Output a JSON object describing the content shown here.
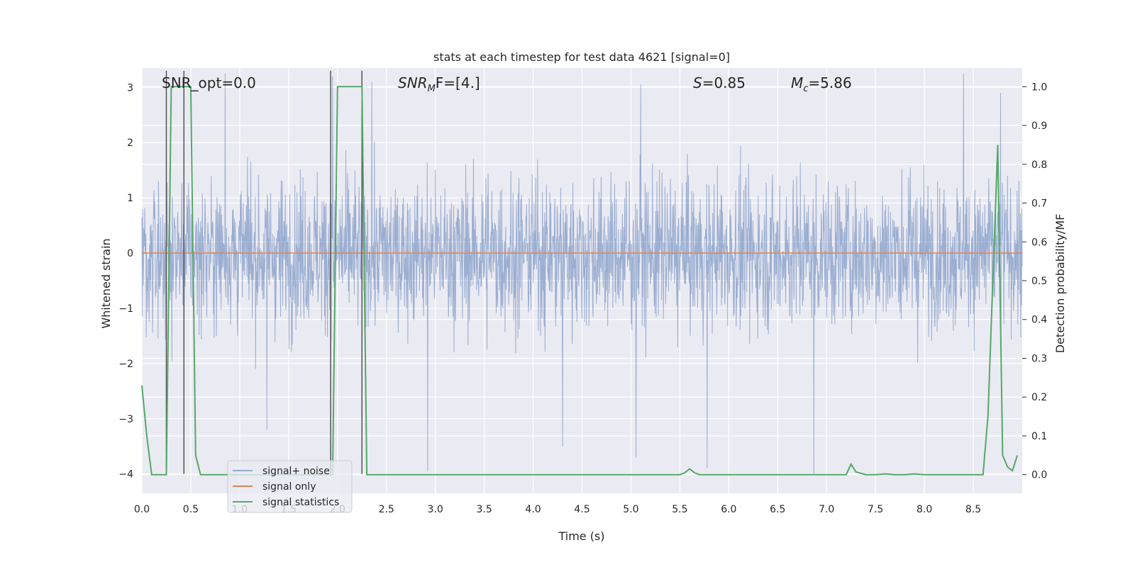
{
  "chart_data": {
    "type": "line",
    "title": "stats at each timestep for test data 4621 [signal=0]",
    "xlabel": "Time (s)",
    "ylabel": "Whitened strain",
    "y2label": "Detection probability/MF",
    "xlim": [
      0.0,
      9.0
    ],
    "ylim": [
      -4.35,
      3.35
    ],
    "y2lim": [
      -0.048,
      1.048
    ],
    "x_ticks": [
      "0.0",
      "0.5",
      "1.0",
      "1.5",
      "2.0",
      "2.5",
      "3.0",
      "3.5",
      "4.0",
      "4.5",
      "5.0",
      "5.5",
      "6.0",
      "6.5",
      "7.0",
      "7.5",
      "8.0",
      "8.5"
    ],
    "y_ticks": [
      "3",
      "2",
      "1",
      "0",
      "−1",
      "−2",
      "−3",
      "−4"
    ],
    "y2_ticks": [
      "1.0",
      "0.9",
      "0.8",
      "0.7",
      "0.6",
      "0.5",
      "0.4",
      "0.3",
      "0.2",
      "0.1",
      "0.0"
    ],
    "grid": true,
    "legend_position": "lower-left",
    "annotations": {
      "snr_opt": "SNR_opt=0.0",
      "snr_mf_main": "SNR",
      "snr_mf_sub": "M",
      "snr_mf_tail": "F=[4.]",
      "s_main": "S",
      "s_tail": "=0.85",
      "mc_main": "M",
      "mc_sub": "c",
      "mc_tail": "=5.86"
    },
    "series": [
      {
        "name": "signal+ noise",
        "color": "#4c72b0",
        "noise_envelope": {
          "typical_range": [
            -1.8,
            1.8
          ],
          "extremes": [
            -4.0,
            3.3
          ]
        },
        "spikes": [
          {
            "x": 0.85,
            "y": 3.25
          },
          {
            "x": 1.28,
            "y": -3.2
          },
          {
            "x": 1.95,
            "y": 3.2
          },
          {
            "x": 2.35,
            "y": 3.1
          },
          {
            "x": 2.92,
            "y": -3.95
          },
          {
            "x": 4.3,
            "y": -3.5
          },
          {
            "x": 5.05,
            "y": -3.7
          },
          {
            "x": 5.1,
            "y": 3.05
          },
          {
            "x": 5.78,
            "y": -3.9
          },
          {
            "x": 6.87,
            "y": -4.0
          },
          {
            "x": 8.4,
            "y": 3.25
          },
          {
            "x": 8.78,
            "y": 2.9
          }
        ]
      },
      {
        "name": "signal only",
        "color": "#dd8452",
        "x": [
          0.0,
          9.0
        ],
        "y": [
          0.0,
          0.0
        ]
      },
      {
        "name": "signal statistics",
        "color": "#55a868",
        "axis": "right",
        "x": [
          0.0,
          0.05,
          0.1,
          0.15,
          0.2,
          0.25,
          0.3,
          0.35,
          0.4,
          0.45,
          0.5,
          0.55,
          0.6,
          0.65,
          0.7,
          0.8,
          0.9,
          1.0,
          1.5,
          1.7,
          1.9,
          1.95,
          2.0,
          2.05,
          2.1,
          2.15,
          2.2,
          2.25,
          2.3,
          2.35,
          2.4,
          3.0,
          4.0,
          5.0,
          5.4,
          5.5,
          5.55,
          5.6,
          5.65,
          5.7,
          5.8,
          6.0,
          6.5,
          7.0,
          7.1,
          7.2,
          7.25,
          7.3,
          7.4,
          7.5,
          7.6,
          7.7,
          7.8,
          7.9,
          8.0,
          8.2,
          8.4,
          8.6,
          8.65,
          8.7,
          8.75,
          8.8,
          8.85,
          8.9,
          8.95
        ],
        "y": [
          0.23,
          0.1,
          0.0,
          0.0,
          0.0,
          0.0,
          1.0,
          1.0,
          1.0,
          1.0,
          1.0,
          0.05,
          0.0,
          0.0,
          0.0,
          0.0,
          0.0,
          0.0,
          0.0,
          0.0,
          0.0,
          0.0,
          1.0,
          1.0,
          1.0,
          1.0,
          1.0,
          1.0,
          0.0,
          0.0,
          0.0,
          0.0,
          0.0,
          0.0,
          0.0,
          0.0,
          0.005,
          0.015,
          0.005,
          0.0,
          0.0,
          0.0,
          0.0,
          0.0,
          0.0,
          0.0,
          0.027,
          0.007,
          0.0,
          0.0,
          0.002,
          0.0,
          0.0,
          0.002,
          0.0,
          0.0,
          0.0,
          0.0,
          0.15,
          0.5,
          0.85,
          0.05,
          0.02,
          0.01,
          0.05
        ]
      }
    ],
    "vertical_markers": [
      {
        "x": 0.25,
        "y_range": [
          -4.0,
          3.3
        ]
      },
      {
        "x": 0.43,
        "y_range": [
          -4.0,
          3.3
        ]
      },
      {
        "x": 1.93,
        "y_range": [
          -4.0,
          3.3
        ]
      },
      {
        "x": 2.25,
        "y_range": [
          -4.0,
          3.3
        ]
      }
    ],
    "background_color": "#eaeaf2",
    "grid_color": "#ffffff"
  }
}
